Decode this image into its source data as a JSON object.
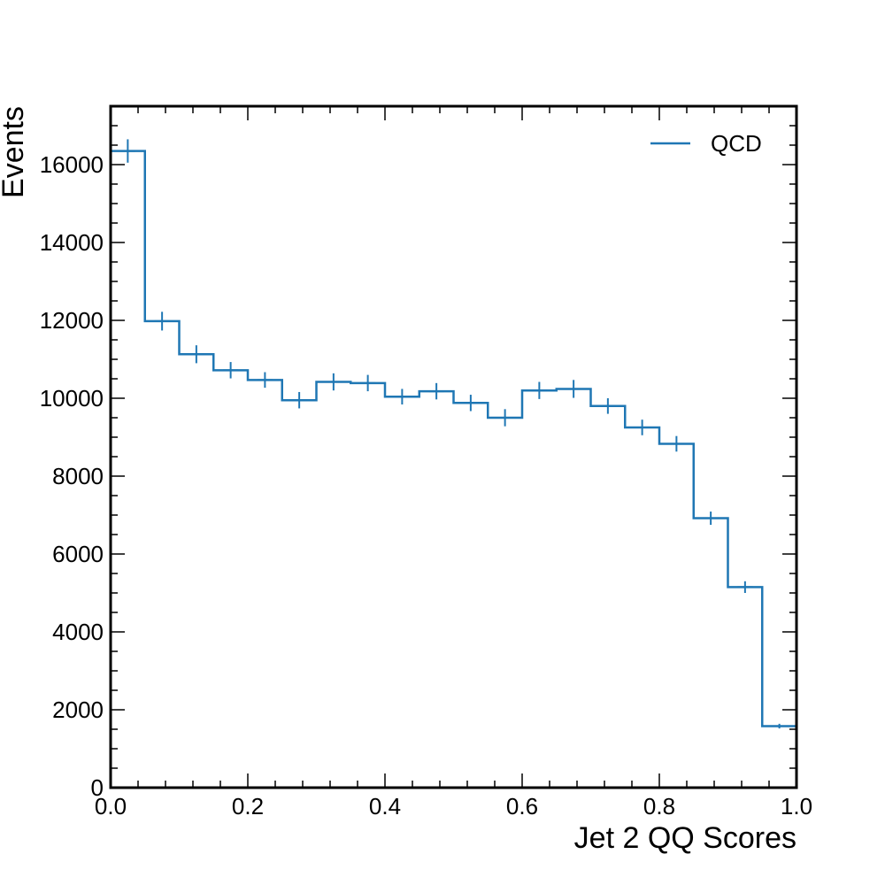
{
  "chart_data": {
    "type": "histogram",
    "xlabel": "Jet 2 QQ Scores",
    "ylabel": "Events",
    "xlim": [
      0.0,
      1.0
    ],
    "ylim": [
      0,
      17500
    ],
    "xticks": [
      0.0,
      0.2,
      0.4,
      0.6,
      0.8,
      1.0
    ],
    "xtick_labels": [
      "0.0",
      "0.2",
      "0.4",
      "0.6",
      "0.8",
      "1.0"
    ],
    "yticks": [
      0,
      2000,
      4000,
      6000,
      8000,
      10000,
      12000,
      14000,
      16000
    ],
    "ytick_labels": [
      "0",
      "2000",
      "4000",
      "6000",
      "8000",
      "10000",
      "12000",
      "14000",
      "16000"
    ],
    "legend_position": "top-right",
    "grid": false,
    "bin_edges": [
      0.0,
      0.05,
      0.1,
      0.15,
      0.2,
      0.25,
      0.3,
      0.35,
      0.4,
      0.45,
      0.5,
      0.55,
      0.6,
      0.65,
      0.7,
      0.75,
      0.8,
      0.85,
      0.9,
      0.95,
      1.0
    ],
    "series": [
      {
        "name": "QCD",
        "color": "#1f77b4",
        "values": [
          16350,
          11980,
          11130,
          10720,
          10470,
          9950,
          10420,
          10390,
          10040,
          10180,
          9880,
          9500,
          10200,
          10240,
          9800,
          9250,
          8830,
          6920,
          5150,
          1580
        ],
        "errors": [
          300,
          240,
          230,
          210,
          200,
          210,
          220,
          210,
          200,
          210,
          210,
          220,
          220,
          230,
          200,
          200,
          200,
          170,
          150,
          60
        ]
      }
    ]
  }
}
